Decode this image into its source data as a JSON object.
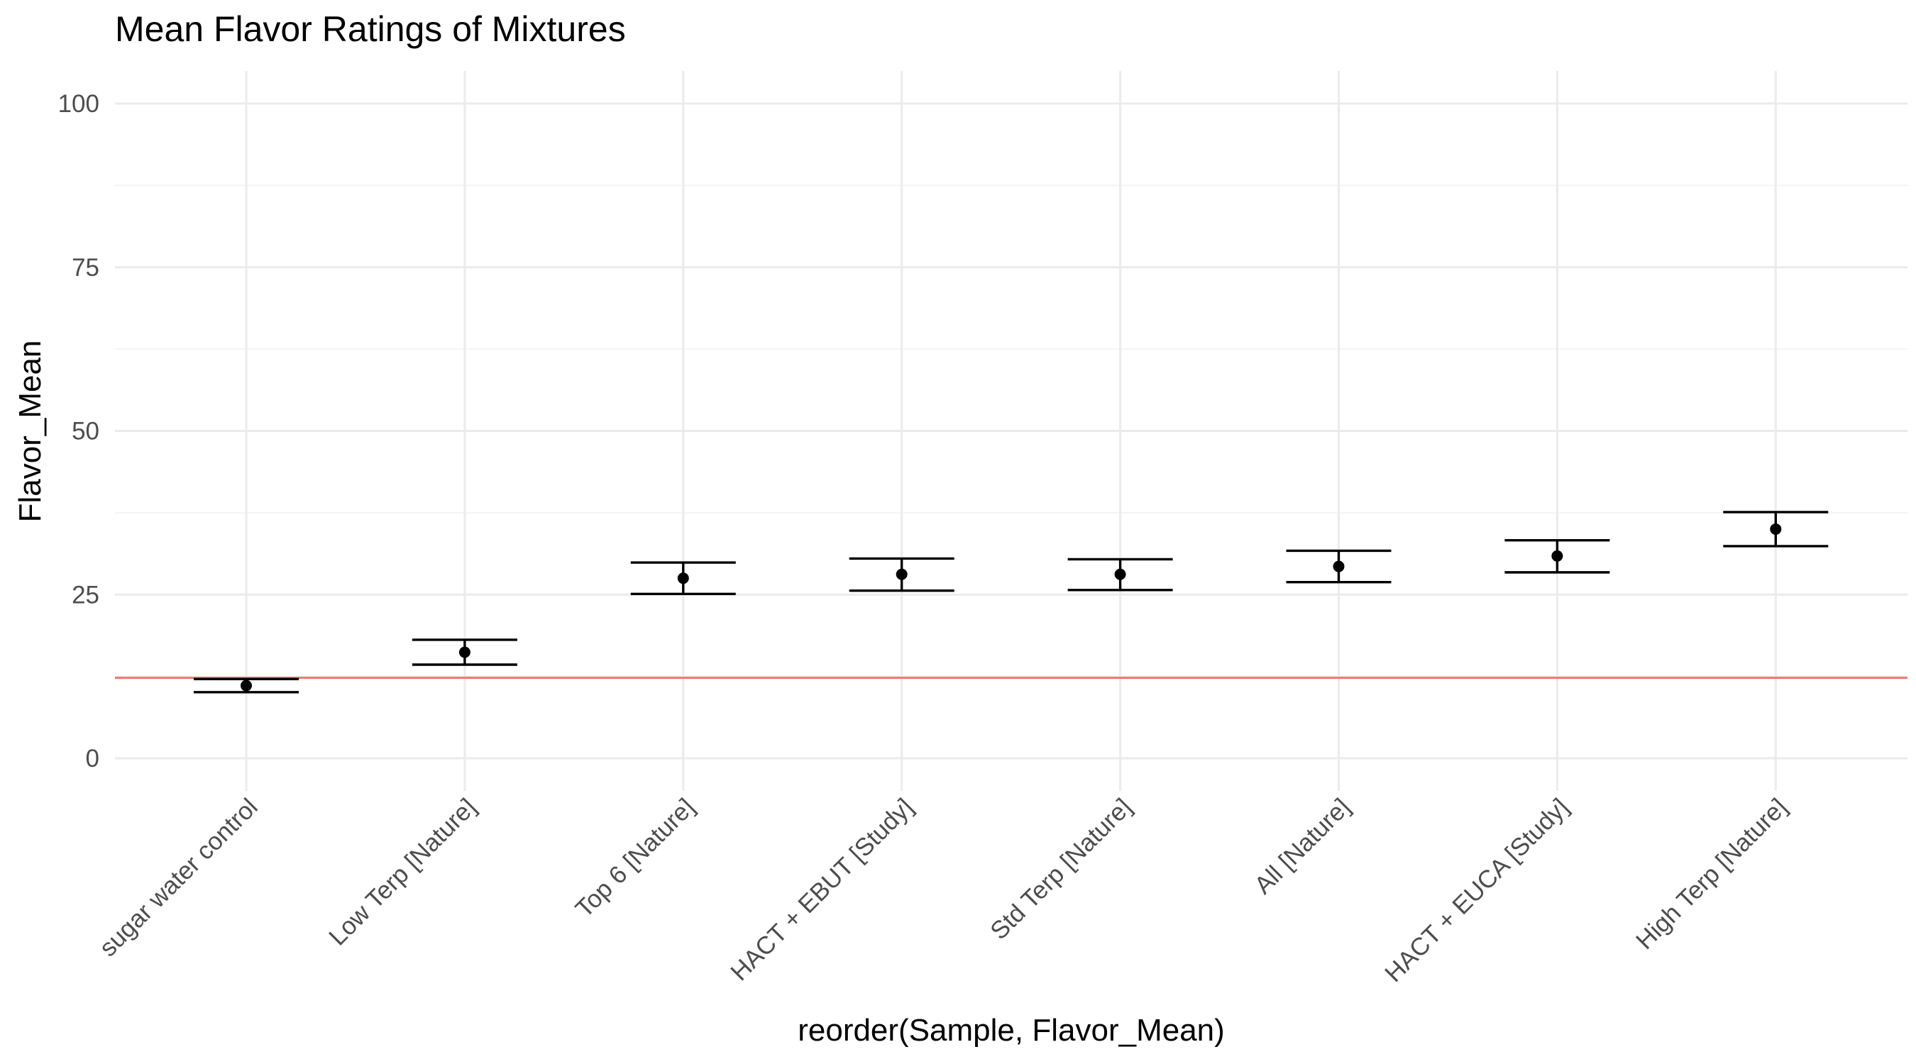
{
  "chart_data": {
    "type": "scatter",
    "title": "Mean Flavor Ratings of Mixtures",
    "xlabel": "reorder(Sample, Flavor_Mean)",
    "ylabel": "Flavor_Mean",
    "ylim": [
      -4,
      105
    ],
    "yticks": [
      0,
      25,
      50,
      75,
      100
    ],
    "grid": true,
    "categories": [
      "sugar water control",
      "Low Terp [Nature]",
      "Top 6 [Nature]",
      "HACT + EBUT [Study]",
      "Std Terp [Nature]",
      "All [Nature]",
      "HACT + EUCA [Study]",
      "High Terp [Nature]"
    ],
    "values": [
      11.1,
      16.2,
      27.5,
      28.1,
      28.1,
      29.3,
      30.9,
      35.0
    ],
    "error_low": [
      10.1,
      14.3,
      25.1,
      25.6,
      25.7,
      26.9,
      28.4,
      32.4
    ],
    "error_high": [
      12.1,
      18.1,
      29.9,
      30.5,
      30.4,
      31.7,
      33.3,
      37.6
    ],
    "reference_line": {
      "y": 12.3,
      "color": "#f8766d"
    },
    "colors": {
      "points": "#000000",
      "grid": "#ebebeb",
      "reference_line": "#f8766d"
    }
  }
}
